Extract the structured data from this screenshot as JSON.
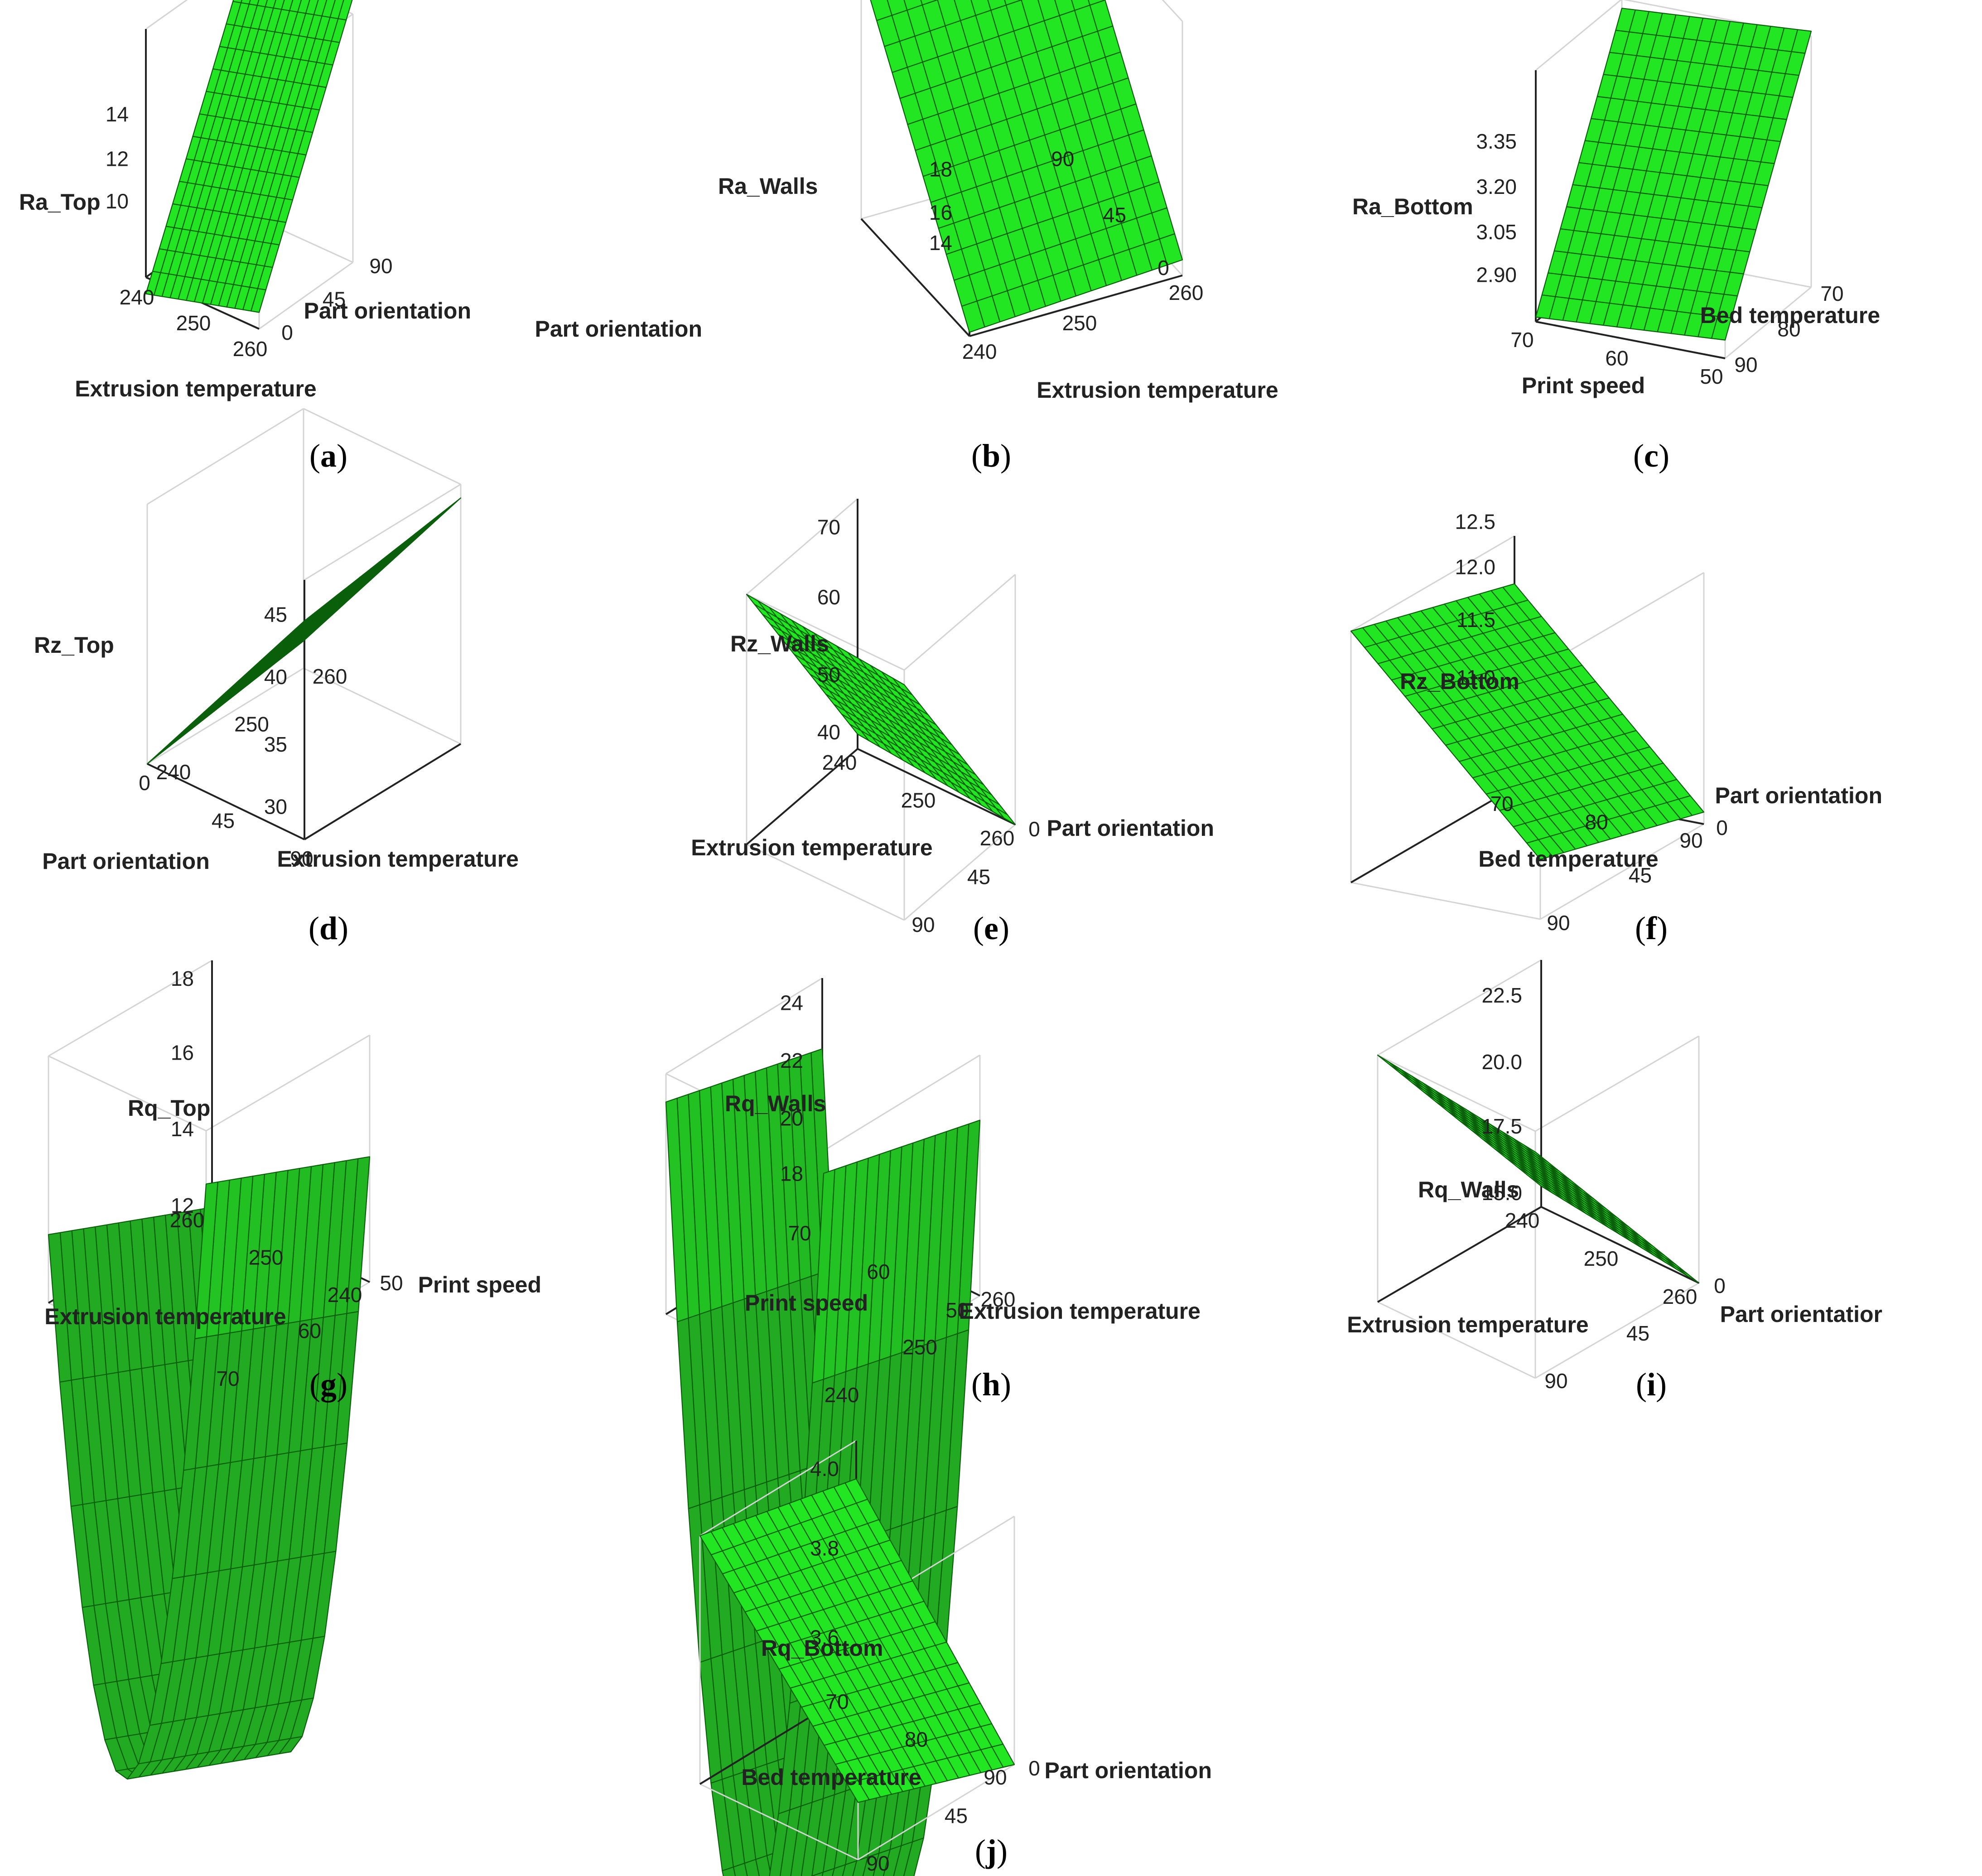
{
  "colors": {
    "surface": "#22e622",
    "grid": "#0a5f0a",
    "box": "#d4d4d4",
    "axis": "#222222"
  },
  "chart_data": [
    {
      "type": "surface3d",
      "panel": "(a)",
      "zlabel": "Ra_Top",
      "xlabel": "Extrusion temperature",
      "ylabel": "Part orientation",
      "x_ticks": [
        "240",
        "250",
        "260"
      ],
      "y_ticks": [
        "0",
        "45",
        "90"
      ],
      "z_ticks": [
        "10",
        "12",
        "14"
      ],
      "xlim": [
        240,
        260
      ],
      "ylim": [
        0,
        90
      ],
      "zlim": [
        9,
        15
      ],
      "corners": {
        "x0y0": 8.6,
        "x1y0": 9.4,
        "x0y1": 14.6,
        "x1y1": 15.4
      }
    },
    {
      "type": "surface3d",
      "panel": "(b)",
      "zlabel": "Ra_Walls",
      "xlabel": "Extrusion temperature",
      "ylabel": "Part orientation",
      "x_ticks": [
        "240",
        "250",
        "260"
      ],
      "y_ticks": [
        "0",
        "45",
        "90"
      ],
      "z_ticks": [
        "14",
        "16",
        "18"
      ],
      "xlim": [
        240,
        260
      ],
      "ylim": [
        0,
        90
      ],
      "zlim": [
        12.5,
        19
      ],
      "corners": {
        "x0y0": 12.6,
        "x1y0": 12.9,
        "x0y1": 18.9,
        "x1y1": 19.2
      }
    },
    {
      "type": "surface3d",
      "panel": "(c)",
      "zlabel": "Ra_Bottom",
      "xlabel": "Print speed",
      "ylabel": "Bed temperature",
      "x_ticks": [
        "70",
        "60",
        "50"
      ],
      "y_ticks": [
        "90",
        "80",
        "70"
      ],
      "z_ticks": [
        "2.90",
        "3.05",
        "3.20",
        "3.35"
      ],
      "xlim": [
        70,
        50
      ],
      "ylim": [
        90,
        70
      ],
      "zlim": [
        2.85,
        3.4
      ],
      "corners": {
        "x0y0": 2.86,
        "x1y0": 2.89,
        "x0y1": 3.38,
        "x1y1": 3.41
      }
    },
    {
      "type": "surface3d",
      "panel": "(d)",
      "zlabel": "Rz_Top",
      "xlabel": "Part orientation",
      "ylabel": "Extrusion temperature",
      "x_ticks": [
        "90",
        "45",
        "0"
      ],
      "y_ticks": [
        "240",
        "250",
        "260"
      ],
      "z_ticks": [
        "30",
        "35",
        "40",
        "45"
      ],
      "xlim": [
        90,
        0
      ],
      "ylim": [
        240,
        260
      ],
      "zlim": [
        28,
        47
      ],
      "corners": {
        "x0y0": 44,
        "x1y0": 28,
        "x0y1": 46,
        "x1y1": 30
      }
    },
    {
      "type": "surface3d",
      "panel": "(e)",
      "zlabel": "Rz_Walls",
      "xlabel": "Extrusion temperature",
      "ylabel": "Part orientation",
      "x_ticks": [
        "240",
        "250",
        "260"
      ],
      "y_ticks": [
        "0",
        "45",
        "90"
      ],
      "z_ticks": [
        "40",
        "50",
        "60",
        "70"
      ],
      "xlim": [
        240,
        260
      ],
      "ylim": [
        0,
        90
      ],
      "zlim": [
        38,
        72
      ],
      "corners": {
        "x0y0": 40,
        "x1y0": 38,
        "x0y1": 72,
        "x1y1": 70
      }
    },
    {
      "type": "surface3d",
      "panel": "(f)",
      "zlabel": "Rz_Bottom",
      "xlabel": "Bed temperature",
      "ylabel": "Part orientation",
      "x_ticks": [
        "70",
        "80",
        "90"
      ],
      "y_ticks": [
        "0",
        "45",
        "90"
      ],
      "z_ticks": [
        "11.0",
        "11.5",
        "12.0",
        "12.5"
      ],
      "xlim": [
        70,
        90
      ],
      "ylim": [
        0,
        90
      ],
      "zlim": [
        10.8,
        12.9
      ],
      "corners": {
        "x0y0": 12.5,
        "x1y0": 10.9,
        "x0y1": 12.9,
        "x1y1": 11.3
      }
    },
    {
      "type": "surface3d",
      "panel": "(g)",
      "zlabel": "Rq_Top",
      "xlabel": "Extrusion temperature",
      "ylabel": "Print speed",
      "x_ticks": [
        "260",
        "250",
        "240"
      ],
      "y_ticks": [
        "50",
        "60",
        "70"
      ],
      "z_ticks": [
        "12",
        "14",
        "16",
        "18"
      ],
      "xlim": [
        260,
        240
      ],
      "ylim": [
        50,
        70
      ],
      "zlim": [
        12,
        18.5
      ],
      "quadratic": {
        "ca": 15.3,
        "cb": 12.3,
        "cd": 12.0,
        "ye": 1.8
      }
    },
    {
      "type": "surface3d",
      "panel": "(h)",
      "zlabel": "Rq_Walls",
      "xlabel": "Print speed",
      "ylabel": "Extrusion temperature",
      "x_ticks": [
        "70",
        "60",
        "50"
      ],
      "y_ticks": [
        "260",
        "250",
        "240"
      ],
      "z_ticks": [
        "18",
        "20",
        "22",
        "24"
      ],
      "xlim": [
        70,
        50
      ],
      "ylim": [
        260,
        240
      ],
      "zlim": [
        16.5,
        25
      ],
      "quadratic": {
        "ca": 22.7,
        "cb": 16.6,
        "cd": 22.5,
        "ye": 1.5
      }
    },
    {
      "type": "surface3d",
      "panel": "(i)",
      "zlabel": "Rq_Walls",
      "xlabel": "Extrusion temperature",
      "ylabel": "Part orientatior",
      "x_ticks": [
        "240",
        "250",
        "260"
      ],
      "y_ticks": [
        "0",
        "45",
        "90"
      ],
      "z_ticks": [
        "15.0",
        "17.5",
        "20.0",
        "22.5"
      ],
      "xlim": [
        240,
        260
      ],
      "ylim": [
        0,
        90
      ],
      "zlim": [
        14.5,
        24
      ],
      "corners": {
        "x0y0": 15.3,
        "x1y0": 14.5,
        "x0y1": 24.0,
        "x1y1": 23.2
      }
    },
    {
      "type": "surface3d",
      "panel": "(j)",
      "zlabel": "Rq_Bottom",
      "xlabel": "Bed temperature",
      "ylabel": "Part orientation",
      "x_ticks": [
        "70",
        "80",
        "90"
      ],
      "y_ticks": [
        "0",
        "45",
        "90"
      ],
      "z_ticks": [
        "3.6",
        "3.8",
        "4.0"
      ],
      "xlim": [
        70,
        90
      ],
      "ylim": [
        0,
        90
      ],
      "zlim": [
        3.45,
        4.1
      ],
      "corners": {
        "x0y0": 4.0,
        "x1y0": 3.45,
        "x0y1": 4.1,
        "x1y1": 3.6
      }
    }
  ]
}
